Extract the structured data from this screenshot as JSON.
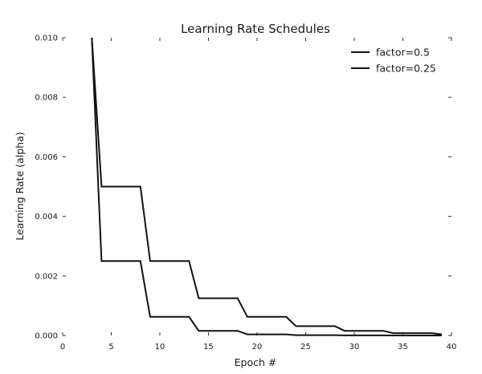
{
  "chart_data": {
    "type": "line",
    "title": "Learning Rate Schedules",
    "xlabel": "Epoch #",
    "ylabel": "Learning Rate (alpha)",
    "xlim": [
      0,
      40
    ],
    "ylim": [
      0.0,
      0.01
    ],
    "x_ticks": [
      "0",
      "5",
      "10",
      "15",
      "20",
      "25",
      "30",
      "35",
      "40"
    ],
    "y_ticks": [
      "0.000",
      "0.002",
      "0.004",
      "0.006",
      "0.008",
      "0.010"
    ],
    "grid": false,
    "legend_position": "top-right",
    "series": [
      {
        "name": "factor=0.5",
        "color": "#111111",
        "x": [
          3,
          4,
          8,
          9,
          13,
          14,
          18,
          19,
          23,
          24,
          28,
          29,
          33,
          34,
          38,
          39
        ],
        "y": [
          0.01,
          0.005,
          0.005,
          0.0025,
          0.0025,
          0.00125,
          0.00125,
          0.000625,
          0.000625,
          0.0003125,
          0.0003125,
          0.00015625,
          0.00015625,
          7.8e-05,
          7.8e-05,
          3.9e-05
        ]
      },
      {
        "name": "factor=0.25",
        "color": "#111111",
        "x": [
          3,
          4,
          8,
          9,
          13,
          14,
          18,
          19,
          23,
          24,
          28,
          29,
          33,
          34,
          38,
          39
        ],
        "y": [
          0.01,
          0.0025,
          0.0025,
          0.000625,
          0.000625,
          0.000156,
          0.000156,
          3.9e-05,
          3.9e-05,
          1e-05,
          1e-05,
          2.4e-06,
          2.4e-06,
          6e-07,
          6e-07,
          2e-07
        ]
      }
    ]
  }
}
